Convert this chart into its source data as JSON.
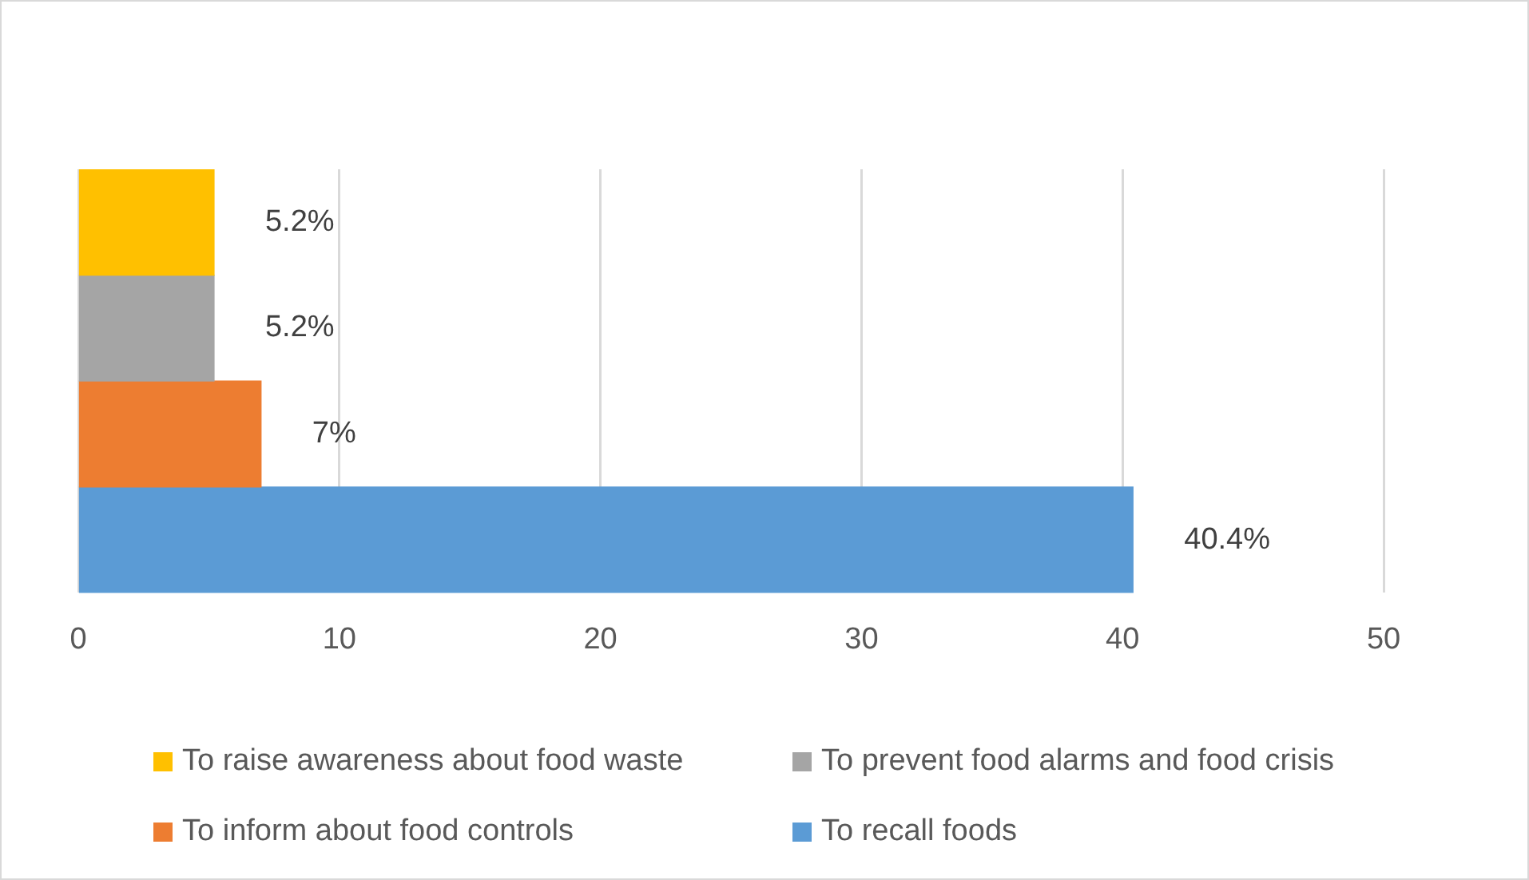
{
  "chart_data": {
    "type": "bar",
    "orientation": "horizontal",
    "stacked": true,
    "categories": [
      null,
      null,
      null,
      null
    ],
    "series": [
      {
        "name": "To raise awareness about food waste",
        "color": "#ffc000",
        "values": [
          5.2,
          null,
          null,
          null
        ],
        "value_labels": [
          "5.2%",
          null,
          null,
          null
        ]
      },
      {
        "name": "To prevent food alarms and food crisis",
        "color": "#a5a5a5",
        "values": [
          null,
          5.2,
          null,
          null
        ],
        "value_labels": [
          null,
          "5.2%",
          null,
          null
        ]
      },
      {
        "name": "To inform about food controls",
        "color": "#ed7d31",
        "values": [
          null,
          null,
          7,
          null
        ],
        "value_labels": [
          null,
          null,
          "7%",
          null
        ]
      },
      {
        "name": "To recall foods",
        "color": "#5b9bd5",
        "values": [
          null,
          null,
          null,
          40.4
        ],
        "value_labels": [
          null,
          null,
          null,
          "40.4%"
        ]
      }
    ],
    "xlim": [
      0,
      50
    ],
    "xticks": [
      0,
      10,
      20,
      30,
      40,
      50
    ],
    "grid": "x",
    "legend": "bottom"
  }
}
